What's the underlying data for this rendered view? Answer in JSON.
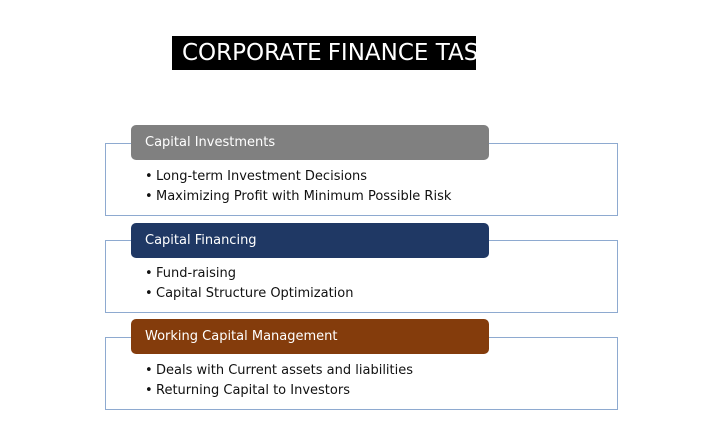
{
  "title": {
    "word1": "CORPORATE",
    "word2": "FINANCE TASKS",
    "background": "#000000",
    "color": "#ffffff"
  },
  "sections": [
    {
      "label": "Capital Investments",
      "color": "#808080",
      "items": [
        "Long-term Investment Decisions",
        "Maximizing Profit  with Minimum Possible Risk"
      ]
    },
    {
      "label": "Capital Financing",
      "color": "#1f3864",
      "items": [
        "Fund-raising",
        "Capital Structure Optimization"
      ]
    },
    {
      "label": "Working Capital Management",
      "color": "#843c0c",
      "items": [
        "Deals with Current assets and liabilities",
        "Returning Capital to Investors"
      ]
    }
  ],
  "panel_border_color": "#8eaad0"
}
